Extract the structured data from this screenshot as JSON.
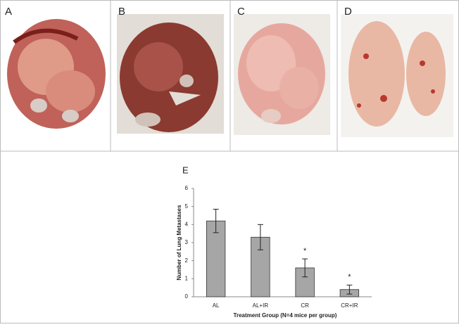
{
  "panels": [
    {
      "label": "A"
    },
    {
      "label": "B"
    },
    {
      "label": "C"
    },
    {
      "label": "D"
    }
  ],
  "chart_data": {
    "type": "bar",
    "title": "E",
    "x_label": "Treatment Group (N=4 mice per group)",
    "y_label": "Number of Lung Metastases",
    "categories": [
      "AL",
      "AL+IR",
      "CR",
      "CR+IR"
    ],
    "values": [
      4.2,
      3.3,
      1.6,
      0.4
    ],
    "errors": [
      0.65,
      0.7,
      0.5,
      0.25
    ],
    "markers": [
      null,
      null,
      "*",
      "*"
    ],
    "color": "#a6a6a6",
    "ylim": [
      0,
      6
    ],
    "yticks": [
      0,
      1,
      2,
      3,
      4,
      5,
      6
    ],
    "grid": false
  }
}
